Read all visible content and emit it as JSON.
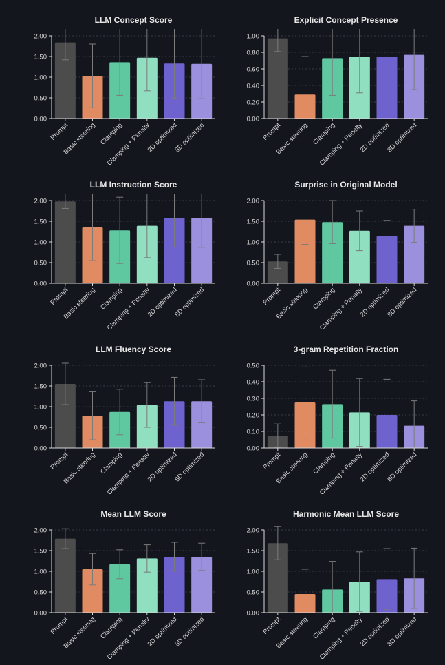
{
  "colors": {
    "background": "#13161d",
    "series": [
      "#4c4c4c",
      "#e08b62",
      "#5fc8a1",
      "#8fdfc0",
      "#6e62cf",
      "#9a90dd"
    ]
  },
  "chart_data": [
    {
      "type": "bar",
      "title": "LLM Concept Score",
      "categories": [
        "Prompt",
        "Basic steering",
        "Clamping",
        "Clamping + Penalty",
        "2D optimized",
        "8D optimized"
      ],
      "values": [
        1.84,
        1.03,
        1.36,
        1.47,
        1.33,
        1.32
      ],
      "errors": [
        0.42,
        0.77,
        0.8,
        0.8,
        0.84,
        0.84
      ],
      "ylim": [
        0,
        2.0
      ],
      "yticks": [
        0.0,
        0.5,
        1.0,
        1.5,
        2.0
      ],
      "ytick_labels": [
        "0.00",
        "0.50",
        "1.00",
        "1.50",
        "2.00"
      ]
    },
    {
      "type": "bar",
      "title": "Explicit Concept Presence",
      "categories": [
        "Prompt",
        "Basic steering",
        "Clamping",
        "Clamping + Penalty",
        "2D optimized",
        "8D optimized"
      ],
      "values": [
        0.97,
        0.29,
        0.73,
        0.75,
        0.75,
        0.77
      ],
      "errors": [
        0.16,
        0.46,
        0.45,
        0.44,
        0.43,
        0.42
      ],
      "ylim": [
        0,
        1.0
      ],
      "yticks": [
        0.0,
        0.2,
        0.4,
        0.6,
        0.8,
        1.0
      ],
      "ytick_labels": [
        "0.00",
        "0.20",
        "0.40",
        "0.60",
        "0.80",
        "1.00"
      ]
    },
    {
      "type": "bar",
      "title": "LLM Instruction Score",
      "categories": [
        "Prompt",
        "Basic steering",
        "Clamping",
        "Clamping + Penalty",
        "2D optimized",
        "8D optimized"
      ],
      "values": [
        1.98,
        1.35,
        1.28,
        1.39,
        1.58,
        1.58
      ],
      "errors": [
        0.17,
        0.8,
        0.8,
        0.77,
        0.7,
        0.71
      ],
      "ylim": [
        0,
        2.0
      ],
      "yticks": [
        0.0,
        0.5,
        1.0,
        1.5,
        2.0
      ],
      "ytick_labels": [
        "0.00",
        "0.50",
        "1.00",
        "1.50",
        "2.00"
      ]
    },
    {
      "type": "bar",
      "title": "Surprise in Original Model",
      "categories": [
        "Prompt",
        "Basic steering",
        "Clamping",
        "Clamping + Penalty",
        "2D optimized",
        "8D optimized"
      ],
      "values": [
        0.53,
        1.54,
        1.48,
        1.27,
        1.14,
        1.39
      ],
      "errors": [
        0.17,
        0.6,
        0.52,
        0.48,
        0.38,
        0.4
      ],
      "ylim": [
        0,
        2.0
      ],
      "yticks": [
        0.0,
        0.5,
        1.0,
        1.5,
        2.0
      ],
      "ytick_labels": [
        "0.00",
        "0.50",
        "1.00",
        "1.50",
        "2.00"
      ]
    },
    {
      "type": "bar",
      "title": "LLM Fluency Score",
      "categories": [
        "Prompt",
        "Basic steering",
        "Clamping",
        "Clamping + Penalty",
        "2D optimized",
        "8D optimized"
      ],
      "values": [
        1.55,
        0.78,
        0.87,
        1.04,
        1.13,
        1.13
      ],
      "errors": [
        0.5,
        0.58,
        0.55,
        0.54,
        0.58,
        0.52
      ],
      "ylim": [
        0,
        2.0
      ],
      "yticks": [
        0.0,
        0.5,
        1.0,
        1.5,
        2.0
      ],
      "ytick_labels": [
        "0.00",
        "0.50",
        "1.00",
        "1.50",
        "2.00"
      ]
    },
    {
      "type": "bar",
      "title": "3-gram Repetition Fraction",
      "categories": [
        "Prompt",
        "Basic steering",
        "Clamping",
        "Clamping + Penalty",
        "2D optimized",
        "8D optimized"
      ],
      "values": [
        0.075,
        0.275,
        0.265,
        0.215,
        0.2,
        0.135
      ],
      "errors": [
        0.07,
        0.215,
        0.205,
        0.205,
        0.215,
        0.15
      ],
      "ylim": [
        0,
        0.5
      ],
      "yticks": [
        0.0,
        0.1,
        0.2,
        0.3,
        0.4,
        0.5
      ],
      "ytick_labels": [
        "0.00",
        "0.10",
        "0.20",
        "0.30",
        "0.40",
        "0.50"
      ]
    },
    {
      "type": "bar",
      "title": "Mean LLM Score",
      "categories": [
        "Prompt",
        "Basic steering",
        "Clamping",
        "Clamping + Penalty",
        "2D optimized",
        "8D optimized"
      ],
      "values": [
        1.79,
        1.05,
        1.17,
        1.31,
        1.35,
        1.35
      ],
      "errors": [
        0.24,
        0.38,
        0.35,
        0.33,
        0.35,
        0.33
      ],
      "ylim": [
        0,
        2.0
      ],
      "yticks": [
        0.0,
        0.5,
        1.0,
        1.5,
        2.0
      ],
      "ytick_labels": [
        "0.00",
        "0.50",
        "1.00",
        "1.50",
        "2.00"
      ]
    },
    {
      "type": "bar",
      "title": "Harmonic Mean LLM Score",
      "categories": [
        "Prompt",
        "Basic steering",
        "Clamping",
        "Clamping + Penalty",
        "2D optimized",
        "8D optimized"
      ],
      "values": [
        1.68,
        0.45,
        0.56,
        0.75,
        0.81,
        0.83
      ],
      "errors": [
        0.4,
        0.6,
        0.68,
        0.72,
        0.74,
        0.73
      ],
      "ylim": [
        0,
        2.0
      ],
      "yticks": [
        0.0,
        0.5,
        1.0,
        1.5,
        2.0
      ],
      "ytick_labels": [
        "0.00",
        "0.50",
        "1.00",
        "1.50",
        "2.00"
      ]
    }
  ]
}
